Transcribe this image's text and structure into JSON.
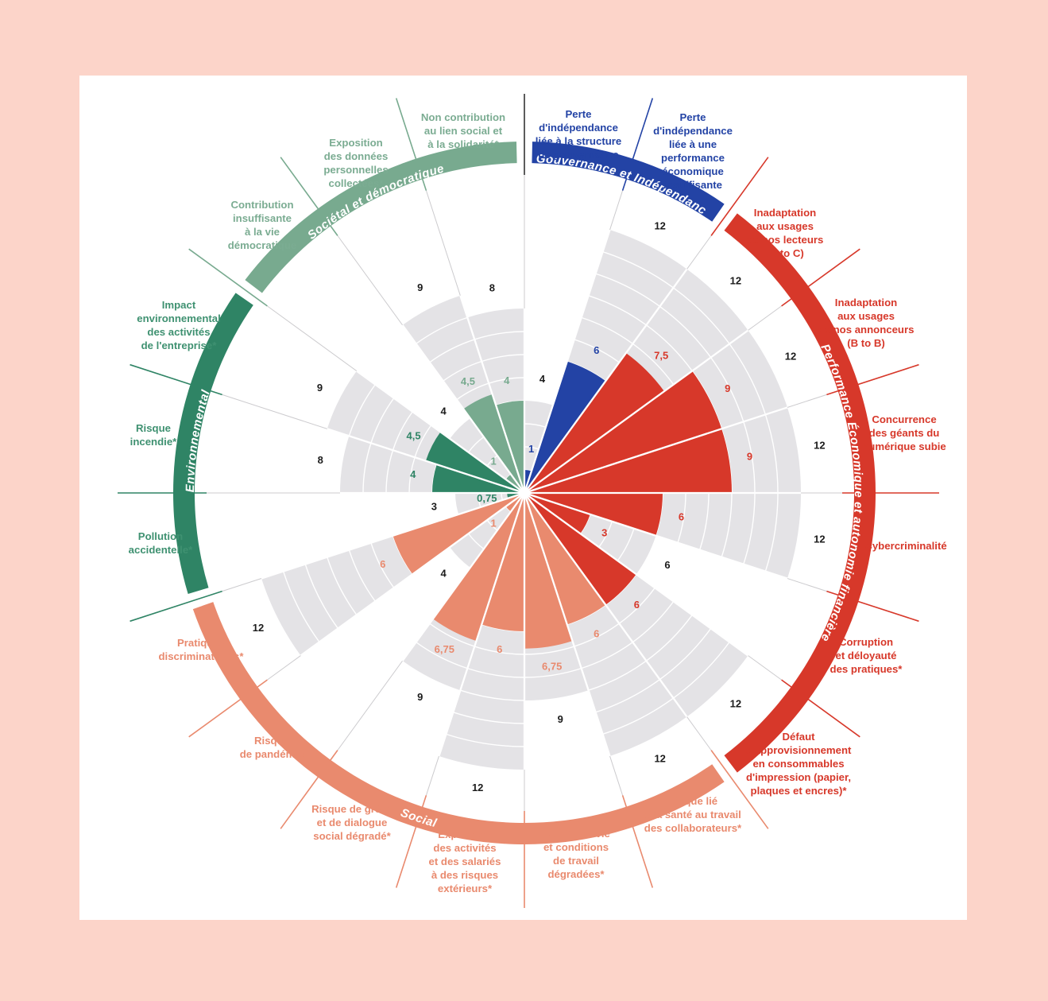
{
  "page": {
    "frame_color": "#fcd4c9",
    "panel_color": "#ffffff"
  },
  "chart_data": {
    "type": "polar_bar_risk_wheel",
    "angle_per_spoke_deg": 18,
    "radial_ring_step": 1,
    "grid_color": "#e4e3e6",
    "sectors": [
      {
        "name": "Gouvernance et Indépendance",
        "color": "#2343a5",
        "risks": [
          {
            "label": "Perte d'indépendance liée à la structure de gouvernance",
            "lines": [
              "Perte",
              "d'indépendance",
              "liée à la structure",
              "de gouvernance"
            ],
            "value": 1,
            "value_label": "1",
            "max": 4
          },
          {
            "label": "Perte d'indépendance liée à une performance économique insuffisante",
            "lines": [
              "Perte",
              "d'indépendance",
              "liée à une",
              "performance",
              "économique",
              "insuffisante"
            ],
            "value": 6,
            "value_label": "6",
            "max": 12
          }
        ]
      },
      {
        "name": "Performance Économique et autonomie financière",
        "color": "#d7382a",
        "risks": [
          {
            "label": "Inadaptation aux usages de nos lecteurs (B to C)",
            "lines": [
              "Inadaptation",
              "aux usages",
              "de nos lecteurs",
              "(B to C)"
            ],
            "value": 7.5,
            "value_label": "7,5",
            "max": 12
          },
          {
            "label": "Inadaptation aux usages de nos annonceurs (B to B)",
            "lines": [
              "Inadaptation",
              "aux usages",
              "de nos annonceurs",
              "(B to B)"
            ],
            "value": 9,
            "value_label": "9",
            "max": 12
          },
          {
            "label": "Concurrence des géants du numérique subie",
            "lines": [
              "Concurrence",
              "des géants du",
              "numérique subie"
            ],
            "value": 9,
            "value_label": "9",
            "max": 12
          },
          {
            "label": "Cybercriminalité",
            "lines": [
              "Cybercriminalité"
            ],
            "value": 6,
            "value_label": "6",
            "max": 12
          },
          {
            "label": "Corruption et déloyauté des pratiques*",
            "lines": [
              "Corruption",
              "et déloyauté",
              "des pratiques*"
            ],
            "value": 3,
            "value_label": "3",
            "max": 6
          },
          {
            "label": "Défaut d'approvisionnement en consommables d'impression (papier, plaques et encres)*",
            "lines": [
              "Défaut",
              "d'approvisionnement",
              "en consommables",
              "d'impression (papier,",
              "plaques et encres)*"
            ],
            "value": 6,
            "value_label": "6",
            "max": 12
          }
        ]
      },
      {
        "name": "Social",
        "color": "#e98a6e",
        "risks": [
          {
            "label": "Risque lié à la santé au travail des collaborateurs*",
            "lines": [
              "Risque lié",
              "à la santé au travail",
              "des collaborateurs*"
            ],
            "value": 6,
            "value_label": "6",
            "max": 12
          },
          {
            "label": "Qualité de vie et conditions de travail dégradées*",
            "lines": [
              "Qualité de vie",
              "et conditions",
              "de travail",
              "dégradées*"
            ],
            "value": 6.75,
            "value_label": "6,75",
            "max": 9
          },
          {
            "label": "Exposition des activités et des salariés à des risques extérieurs*",
            "lines": [
              "Exposition",
              "des activités",
              "et des salariés",
              "à des risques",
              "extérieurs*"
            ],
            "value": 6,
            "value_label": "6",
            "max": 12
          },
          {
            "label": "Risque de grève et de dialogue social dégradé*",
            "lines": [
              "Risque de grève",
              "et de dialogue",
              "social dégradé*"
            ],
            "value": 6.75,
            "value_label": "6,75",
            "max": 9
          },
          {
            "label": "Risque de pandémie",
            "lines": [
              "Risque",
              "de pandémie"
            ],
            "value": 1,
            "value_label": "1",
            "max": 4
          },
          {
            "label": "Pratiques discriminatoires*",
            "lines": [
              "Pratiques",
              "discriminatoires*"
            ],
            "value": 6,
            "value_label": "6",
            "max": 12
          }
        ]
      },
      {
        "name": "Environnemental",
        "color": "#2f8465",
        "label_color": "#3f9171",
        "risks": [
          {
            "label": "Pollution accidentelle*",
            "lines": [
              "Pollution",
              "accidentelle*"
            ],
            "value": 0.75,
            "value_label": "0,75",
            "max": 3
          },
          {
            "label": "Risque incendie*",
            "lines": [
              "Risque",
              "incendie*"
            ],
            "value": 4,
            "value_label": "4",
            "max": 8
          },
          {
            "label": "Impact environnemental des activités de l'entreprise*",
            "lines": [
              "Impact",
              "environnemental",
              "des activités",
              "de l'entreprise*"
            ],
            "value": 4.5,
            "value_label": "4,5",
            "max": 9
          }
        ]
      },
      {
        "name": "Sociétal et démocratique",
        "color": "#78aa8f",
        "label_color": "#7bac92",
        "risks": [
          {
            "label": "Contribution insuffisante à la vie démocratique",
            "lines": [
              "Contribution",
              "insuffisante",
              "à la vie",
              "démocratique"
            ],
            "value": 1,
            "value_label": "1",
            "max": 4
          },
          {
            "label": "Exposition des données personnelles collectées*",
            "lines": [
              "Exposition",
              "des données",
              "personnelles",
              "collectées*"
            ],
            "value": 4.5,
            "value_label": "4,5",
            "max": 9
          },
          {
            "label": "Non contribution au lien social et à la solidarité*",
            "lines": [
              "Non contribution",
              "au lien social et",
              "à la solidarité*"
            ],
            "value": 4,
            "value_label": "4",
            "max": 8
          }
        ]
      }
    ]
  }
}
